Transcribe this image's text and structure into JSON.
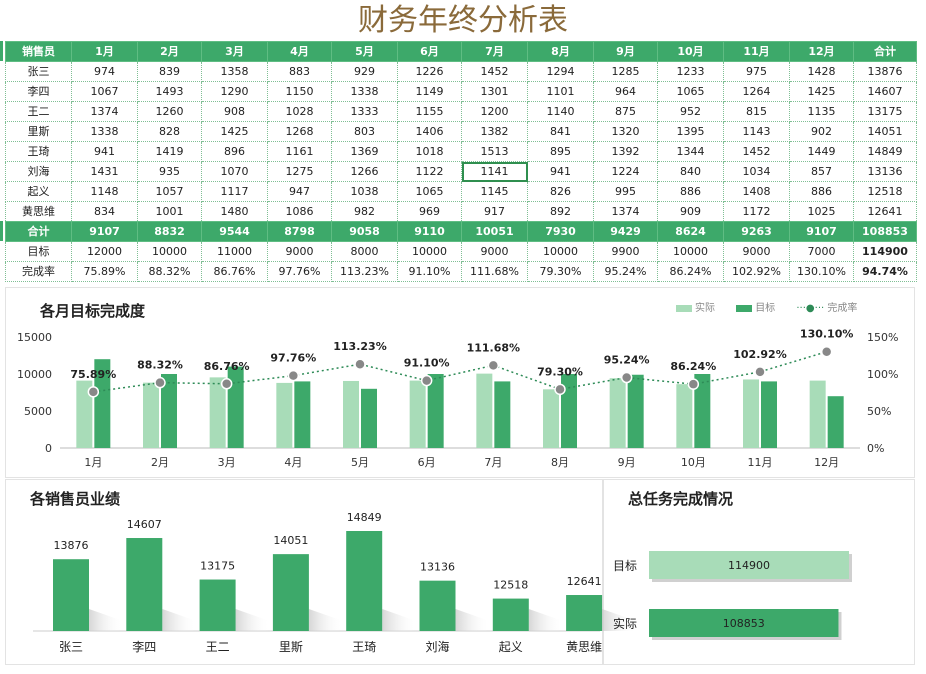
{
  "title": "财务年终分析表",
  "table": {
    "headers": [
      "销售员",
      "1月",
      "2月",
      "3月",
      "4月",
      "5月",
      "6月",
      "7月",
      "8月",
      "9月",
      "10月",
      "11月",
      "12月",
      "合计"
    ],
    "rows": [
      [
        "张三",
        "974",
        "839",
        "1358",
        "883",
        "929",
        "1226",
        "1452",
        "1294",
        "1285",
        "1233",
        "975",
        "1428",
        "13876"
      ],
      [
        "李四",
        "1067",
        "1493",
        "1290",
        "1150",
        "1338",
        "1149",
        "1301",
        "1101",
        "964",
        "1065",
        "1264",
        "1425",
        "14607"
      ],
      [
        "王二",
        "1374",
        "1260",
        "908",
        "1028",
        "1333",
        "1155",
        "1200",
        "1140",
        "875",
        "952",
        "815",
        "1135",
        "13175"
      ],
      [
        "里斯",
        "1338",
        "828",
        "1425",
        "1268",
        "803",
        "1406",
        "1382",
        "841",
        "1320",
        "1395",
        "1143",
        "902",
        "14051"
      ],
      [
        "王琦",
        "941",
        "1419",
        "896",
        "1161",
        "1369",
        "1018",
        "1513",
        "895",
        "1392",
        "1344",
        "1452",
        "1449",
        "14849"
      ],
      [
        "刘海",
        "1431",
        "935",
        "1070",
        "1275",
        "1266",
        "1122",
        "1141",
        "941",
        "1224",
        "840",
        "1034",
        "857",
        "13136"
      ],
      [
        "起义",
        "1148",
        "1057",
        "1117",
        "947",
        "1038",
        "1065",
        "1145",
        "826",
        "995",
        "886",
        "1408",
        "886",
        "12518"
      ],
      [
        "黄思维",
        "834",
        "1001",
        "1480",
        "1086",
        "982",
        "969",
        "917",
        "892",
        "1374",
        "909",
        "1172",
        "1025",
        "12641"
      ]
    ],
    "total": [
      "合计",
      "9107",
      "8832",
      "9544",
      "8798",
      "9058",
      "9110",
      "10051",
      "7930",
      "9429",
      "8624",
      "9263",
      "9107",
      "108853"
    ],
    "target": [
      "目标",
      "12000",
      "10000",
      "11000",
      "9000",
      "8000",
      "10000",
      "9000",
      "10000",
      "9900",
      "10000",
      "9000",
      "7000",
      "114900"
    ],
    "rate": [
      "完成率",
      "75.89%",
      "88.32%",
      "86.76%",
      "97.76%",
      "113.23%",
      "91.10%",
      "111.68%",
      "79.30%",
      "95.24%",
      "86.24%",
      "102.92%",
      "130.10%",
      "94.74%"
    ]
  },
  "chart_data": [
    {
      "type": "bar",
      "title": "各月目标完成度",
      "categories": [
        "1月",
        "2月",
        "3月",
        "4月",
        "5月",
        "6月",
        "7月",
        "8月",
        "9月",
        "10月",
        "11月",
        "12月"
      ],
      "series": [
        {
          "name": "实际",
          "values": [
            9107,
            8832,
            9544,
            8798,
            9058,
            9110,
            10051,
            7930,
            9429,
            8624,
            9263,
            9107
          ],
          "color": "#a8dcb8"
        },
        {
          "name": "目标",
          "values": [
            12000,
            10000,
            11000,
            9000,
            8000,
            10000,
            9000,
            10000,
            9900,
            10000,
            9000,
            7000
          ],
          "color": "#3da96a"
        },
        {
          "name": "完成率",
          "values": [
            75.89,
            88.32,
            86.76,
            97.76,
            113.23,
            91.1,
            111.68,
            79.3,
            95.24,
            86.24,
            102.92,
            130.1
          ],
          "labels": [
            "75.89%",
            "88.32%",
            "86.76%",
            "97.76%",
            "113.23%",
            "91.10%",
            "111.68%",
            "79.30%",
            "95.24%",
            "86.24%",
            "102.92%",
            "130.10%"
          ],
          "color": "#2e8b57",
          "axis": "right"
        }
      ],
      "ylim": [
        0,
        15000
      ],
      "yticks": [
        "0",
        "5000",
        "10000",
        "15000"
      ],
      "y2lim": [
        0,
        150
      ],
      "y2ticks": [
        "0%",
        "50%",
        "100%",
        "150%"
      ],
      "legend": "top-right"
    },
    {
      "type": "bar",
      "title": "各销售员业绩",
      "categories": [
        "张三",
        "李四",
        "王二",
        "里斯",
        "王琦",
        "刘海",
        "起义",
        "黄思维"
      ],
      "values": [
        13876,
        14607,
        13175,
        14051,
        14849,
        13136,
        12518,
        12641
      ],
      "color": "#3da96a"
    },
    {
      "type": "bar",
      "title": "总任务完成情况",
      "orientation": "horizontal",
      "categories": [
        "目标",
        "实际"
      ],
      "values": [
        114900,
        108853
      ],
      "colors": [
        "#a8dcb8",
        "#3da96a"
      ]
    }
  ]
}
